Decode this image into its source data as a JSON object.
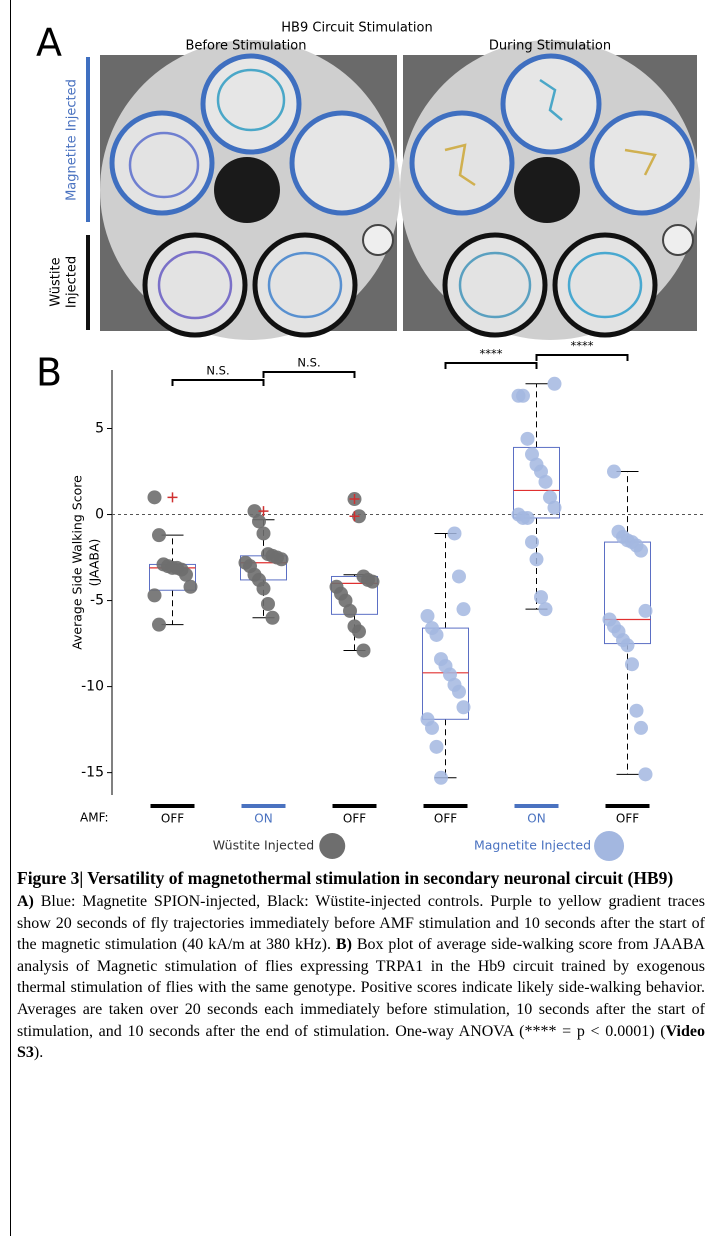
{
  "panel_a": {
    "panel_letter": "A",
    "title": "HB9 Circuit Stimulation",
    "column_labels": [
      "Before Stimulation",
      "During Stimulation"
    ],
    "row_labels": [
      {
        "lines": [
          "Magnetite Injected"
        ],
        "color": "#4a72c0"
      },
      {
        "lines": [
          "Wüstite",
          "Injected"
        ],
        "color": "#000000"
      }
    ]
  },
  "chart_data": {
    "type": "box",
    "panel_letter": "B",
    "y_label_lines": [
      "Average Side Walking Score",
      "(JAABA)"
    ],
    "ylim": [
      -16.3,
      8.4
    ],
    "yticks": [
      5,
      0,
      -5,
      -10,
      -15
    ],
    "zero_line": true,
    "x_label": "AMF:",
    "amf_colors": {
      "OFF": "#000000",
      "ON": "#4a72c0"
    },
    "box_color": "#5b6fc4",
    "median_color": "#e03030",
    "outlier_color": "#d03030",
    "series": [
      {
        "name": "Wüstite Injected",
        "color": "#6e6e6e",
        "name_color": "#333333",
        "groups": [
          {
            "category": "OFF",
            "whisker_low": -6.4,
            "q1": -4.4,
            "median": -3.1,
            "q3": -2.9,
            "whisker_high": -1.2,
            "points": [
              1.0,
              -1.2,
              -2.9,
              -3.0,
              -3.1,
              -3.1,
              -3.2,
              -3.5,
              -4.2,
              -4.7,
              -6.4
            ],
            "outliers": [
              1.0
            ],
            "vs_next": "N.S."
          },
          {
            "category": "ON",
            "whisker_low": -6.0,
            "q1": -3.8,
            "median": -2.8,
            "q3": -2.4,
            "whisker_high": -0.3,
            "points": [
              0.2,
              -0.4,
              -1.1,
              -2.3,
              -2.4,
              -2.5,
              -2.6,
              -2.8,
              -3.0,
              -3.5,
              -3.8,
              -4.3,
              -5.2,
              -6.0
            ],
            "outliers": [
              0.2
            ],
            "vs_next": "N.S."
          },
          {
            "category": "OFF",
            "whisker_low": -7.9,
            "q1": -5.8,
            "median": -4.0,
            "q3": -3.6,
            "whisker_high": -3.5,
            "points": [
              0.9,
              -0.1,
              -3.6,
              -3.8,
              -3.9,
              -4.2,
              -4.6,
              -5.0,
              -5.6,
              -6.5,
              -6.8,
              -7.9
            ],
            "outliers": [
              0.9,
              -0.1
            ],
            "vs_next": null
          }
        ]
      },
      {
        "name": "Magnetite Injected",
        "color": "#a3b7e0",
        "name_color": "#4a72c0",
        "groups": [
          {
            "category": "OFF",
            "whisker_low": -15.3,
            "q1": -11.9,
            "median": -9.2,
            "q3": -6.6,
            "whisker_high": -1.1,
            "points": [
              -1.1,
              -3.6,
              -5.5,
              -5.9,
              -6.6,
              -7.0,
              -8.4,
              -8.8,
              -9.3,
              -9.9,
              -10.3,
              -11.2,
              -11.9,
              -12.4,
              -13.5,
              -15.3
            ],
            "outliers": [],
            "vs_next": "****"
          },
          {
            "category": "ON",
            "whisker_low": -5.5,
            "q1": -0.2,
            "median": 1.4,
            "q3": 3.9,
            "whisker_high": 7.6,
            "points": [
              7.6,
              6.9,
              6.9,
              4.4,
              3.5,
              2.9,
              2.5,
              1.9,
              1.0,
              0.4,
              0.0,
              -0.2,
              -0.2,
              -1.6,
              -2.6,
              -4.8,
              -5.5
            ],
            "outliers": [],
            "vs_next": "****"
          },
          {
            "category": "OFF",
            "whisker_low": -15.1,
            "q1": -7.5,
            "median": -6.1,
            "q3": -1.6,
            "whisker_high": 2.5,
            "points": [
              2.5,
              -1.0,
              -1.3,
              -1.5,
              -1.6,
              -1.8,
              -2.1,
              -5.6,
              -6.1,
              -6.5,
              -6.8,
              -7.3,
              -7.6,
              -8.7,
              -11.4,
              -12.4,
              -15.1
            ],
            "outliers": [],
            "vs_next": null
          }
        ]
      }
    ]
  },
  "caption": {
    "title": "Figure 3|  Versatility of magnetothermal stimulation in secondary neuronal circuit (HB9)",
    "parts": [
      {
        "text": "A)",
        "bold": true
      },
      {
        "text": " Blue: Magnetite SPION-injected, Black: Wüstite-injected controls. Purple to yellow gradient traces show 20 seconds of fly trajectories immediately before AMF stimulation and 10 seconds after the start of the magnetic stimulation (40 kA/m at 380 kHz). ",
        "bold": false
      },
      {
        "text": "B)",
        "bold": true
      },
      {
        "text": " Box plot of average side-walking score from JAABA analysis of Magnetic stimulation of flies expressing TRPA1 in the Hb9 circuit trained by exogenous thermal stimulation of flies with the same genotype. Positive scores indicate likely side-walking behavior. Averages are taken over 20 seconds each immediately before stimulation, 10 seconds after the start of stimulation, and 10 seconds after the end of stimulation. One-way ANOVA (**** = p < 0.0001) (",
        "bold": false
      },
      {
        "text": "Video S3",
        "bold": true
      },
      {
        "text": ").",
        "bold": false
      }
    ]
  }
}
